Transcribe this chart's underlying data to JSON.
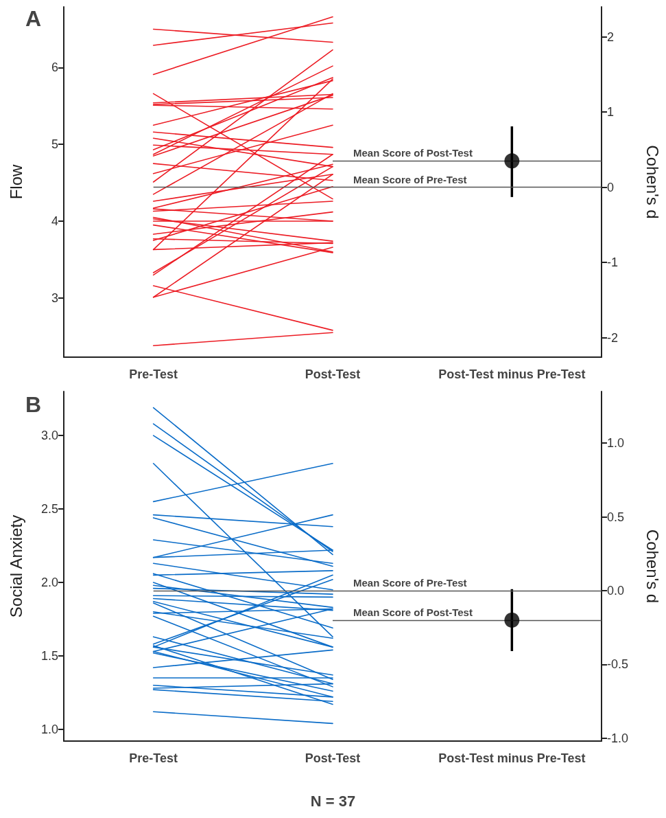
{
  "chart_data": [
    {
      "type": "line",
      "title": "A",
      "ylabel": "Flow",
      "y2label": "Cohen's d",
      "categories": [
        "Pre-Test",
        "Post-Test",
        "Post-Test minus Pre-Test"
      ],
      "ylim": [
        2.23,
        6.79
      ],
      "yticks": [
        3,
        4,
        5,
        6
      ],
      "y2lim": [
        -2.26,
        2.4
      ],
      "y2ticks": [
        -2,
        -1,
        0,
        1,
        2
      ],
      "ref_lines": [
        {
          "axis": "y2",
          "value": 0,
          "label": "Mean Score of Pre-Test",
          "color": "#555555"
        },
        {
          "axis": "y2",
          "value": 0.35,
          "label": "Mean Score of Post-Test",
          "color": "#555555"
        }
      ],
      "series": [
        {
          "color": "#ec1c24",
          "x": [
            "Pre-Test",
            "Post-Test"
          ],
          "values": [
            6.5,
            6.33
          ]
        },
        {
          "color": "#ec1c24",
          "x": [
            "Pre-Test",
            "Post-Test"
          ],
          "values": [
            6.29,
            6.58
          ]
        },
        {
          "color": "#ec1c24",
          "x": [
            "Pre-Test",
            "Post-Test"
          ],
          "values": [
            5.91,
            6.66
          ]
        },
        {
          "color": "#ec1c24",
          "x": [
            "Pre-Test",
            "Post-Test"
          ],
          "values": [
            5.66,
            4.29
          ]
        },
        {
          "color": "#ec1c24",
          "x": [
            "Pre-Test",
            "Post-Test"
          ],
          "values": [
            5.54,
            5.65
          ]
        },
        {
          "color": "#ec1c24",
          "x": [
            "Pre-Test",
            "Post-Test"
          ],
          "values": [
            5.52,
            5.61
          ]
        },
        {
          "color": "#ec1c24",
          "x": [
            "Pre-Test",
            "Post-Test"
          ],
          "values": [
            5.51,
            5.46
          ]
        },
        {
          "color": "#ec1c24",
          "x": [
            "Pre-Test",
            "Post-Test"
          ],
          "values": [
            5.25,
            5.83
          ]
        },
        {
          "color": "#ec1c24",
          "x": [
            "Pre-Test",
            "Post-Test"
          ],
          "values": [
            5.16,
            4.96
          ]
        },
        {
          "color": "#ec1c24",
          "x": [
            "Pre-Test",
            "Post-Test"
          ],
          "values": [
            5.08,
            4.71
          ]
        },
        {
          "color": "#ec1c24",
          "x": [
            "Pre-Test",
            "Post-Test"
          ],
          "values": [
            4.99,
            4.87
          ]
        },
        {
          "color": "#ec1c24",
          "x": [
            "Pre-Test",
            "Post-Test"
          ],
          "values": [
            4.93,
            5.87
          ]
        },
        {
          "color": "#ec1c24",
          "x": [
            "Pre-Test",
            "Post-Test"
          ],
          "values": [
            4.87,
            6.02
          ]
        },
        {
          "color": "#ec1c24",
          "x": [
            "Pre-Test",
            "Post-Test"
          ],
          "values": [
            4.85,
            5.64
          ]
        },
        {
          "color": "#ec1c24",
          "x": [
            "Pre-Test",
            "Post-Test"
          ],
          "values": [
            4.75,
            4.53
          ]
        },
        {
          "color": "#ec1c24",
          "x": [
            "Pre-Test",
            "Post-Test"
          ],
          "values": [
            4.62,
            5.25
          ]
        },
        {
          "color": "#ec1c24",
          "x": [
            "Pre-Test",
            "Post-Test"
          ],
          "values": [
            4.51,
            6.23
          ]
        },
        {
          "color": "#ec1c24",
          "x": [
            "Pre-Test",
            "Post-Test"
          ],
          "values": [
            4.35,
            5.66
          ]
        },
        {
          "color": "#ec1c24",
          "x": [
            "Pre-Test",
            "Post-Test"
          ],
          "values": [
            4.26,
            4.61
          ]
        },
        {
          "color": "#ec1c24",
          "x": [
            "Pre-Test",
            "Post-Test"
          ],
          "values": [
            4.17,
            4.74
          ]
        },
        {
          "color": "#ec1c24",
          "x": [
            "Pre-Test",
            "Post-Test"
          ],
          "values": [
            4.16,
            4.0
          ]
        },
        {
          "color": "#ec1c24",
          "x": [
            "Pre-Test",
            "Post-Test"
          ],
          "values": [
            4.13,
            4.26
          ]
        },
        {
          "color": "#ec1c24",
          "x": [
            "Pre-Test",
            "Post-Test"
          ],
          "values": [
            4.05,
            3.6
          ]
        },
        {
          "color": "#ec1c24",
          "x": [
            "Pre-Test",
            "Post-Test"
          ],
          "values": [
            4.03,
            3.74
          ]
        },
        {
          "color": "#ec1c24",
          "x": [
            "Pre-Test",
            "Post-Test"
          ],
          "values": [
            4.0,
            4.0
          ]
        },
        {
          "color": "#ec1c24",
          "x": [
            "Pre-Test",
            "Post-Test"
          ],
          "values": [
            3.95,
            3.59
          ]
        },
        {
          "color": "#ec1c24",
          "x": [
            "Pre-Test",
            "Post-Test"
          ],
          "values": [
            3.83,
            4.12
          ]
        },
        {
          "color": "#ec1c24",
          "x": [
            "Pre-Test",
            "Post-Test"
          ],
          "values": [
            3.75,
            4.45
          ]
        },
        {
          "color": "#ec1c24",
          "x": [
            "Pre-Test",
            "Post-Test"
          ],
          "values": [
            3.63,
            5.85
          ]
        },
        {
          "color": "#ec1c24",
          "x": [
            "Pre-Test",
            "Post-Test"
          ],
          "values": [
            3.63,
            3.72
          ]
        },
        {
          "color": "#ec1c24",
          "x": [
            "Pre-Test",
            "Post-Test"
          ],
          "values": [
            3.33,
            4.71
          ]
        },
        {
          "color": "#ec1c24",
          "x": [
            "Pre-Test",
            "Post-Test"
          ],
          "values": [
            3.3,
            4.87
          ]
        },
        {
          "color": "#ec1c24",
          "x": [
            "Pre-Test",
            "Post-Test"
          ],
          "values": [
            3.16,
            2.58
          ]
        },
        {
          "color": "#ec1c24",
          "x": [
            "Pre-Test",
            "Post-Test"
          ],
          "values": [
            3.01,
            4.61
          ]
        },
        {
          "color": "#ec1c24",
          "x": [
            "Pre-Test",
            "Post-Test"
          ],
          "values": [
            3.01,
            3.66
          ]
        },
        {
          "color": "#ec1c24",
          "x": [
            "Pre-Test",
            "Post-Test"
          ],
          "values": [
            2.38,
            2.55
          ]
        },
        {
          "color": "#ec1c24",
          "x": [
            "Pre-Test",
            "Post-Test"
          ],
          "values": [
            3.77,
            3.71
          ]
        },
        {
          "type": "scatter",
          "axis": "y2",
          "marker": "circle",
          "color": "#000000",
          "x": [
            "Post-Test minus Pre-Test"
          ],
          "values": [
            0.35
          ],
          "errors": [
            [
              -0.13,
              0.81
            ]
          ]
        }
      ]
    },
    {
      "type": "line",
      "title": "B",
      "ylabel": "Social Anxiety",
      "y2label": "Cohen's d",
      "categories": [
        "Pre-Test",
        "Post-Test",
        "Post-Test minus Pre-Test"
      ],
      "ylim": [
        0.92,
        3.3
      ],
      "yticks": [
        {
          "value": 1,
          "label": "1.0"
        },
        {
          "value": 1.5,
          "label": "1.5"
        },
        {
          "value": 2,
          "label": "2.0"
        },
        {
          "value": 2.5,
          "label": "2.5"
        },
        {
          "value": 3,
          "label": "3.0"
        }
      ],
      "y2lim": [
        -1.02,
        1.35
      ],
      "y2ticks": [
        {
          "value": -1,
          "label": "-1.0"
        },
        {
          "value": -0.5,
          "label": "-0.5"
        },
        {
          "value": 0,
          "label": "0.0"
        },
        {
          "value": 0.5,
          "label": "0.5"
        },
        {
          "value": 1,
          "label": "1.0"
        }
      ],
      "ref_lines": [
        {
          "axis": "y2",
          "value": 0,
          "label": "Mean Score of Pre-Test",
          "color": "#555555"
        },
        {
          "axis": "y2",
          "value": -0.2,
          "label": "Mean Score of Post-Test",
          "color": "#555555"
        }
      ],
      "annotations": [
        "N = 37"
      ],
      "series": [
        {
          "color": "#0a6cc8",
          "x": [
            "Pre-Test",
            "Post-Test"
          ],
          "values": [
            3.19,
            2.19
          ]
        },
        {
          "color": "#0a6cc8",
          "x": [
            "Pre-Test",
            "Post-Test"
          ],
          "values": [
            3.08,
            2.21
          ]
        },
        {
          "color": "#0a6cc8",
          "x": [
            "Pre-Test",
            "Post-Test"
          ],
          "values": [
            3.0,
            2.22
          ]
        },
        {
          "color": "#0a6cc8",
          "x": [
            "Pre-Test",
            "Post-Test"
          ],
          "values": [
            2.81,
            1.63
          ]
        },
        {
          "color": "#0a6cc8",
          "x": [
            "Pre-Test",
            "Post-Test"
          ],
          "values": [
            2.55,
            2.81
          ]
        },
        {
          "color": "#0a6cc8",
          "x": [
            "Pre-Test",
            "Post-Test"
          ],
          "values": [
            2.46,
            2.38
          ]
        },
        {
          "color": "#0a6cc8",
          "x": [
            "Pre-Test",
            "Post-Test"
          ],
          "values": [
            2.44,
            2.11
          ]
        },
        {
          "color": "#0a6cc8",
          "x": [
            "Pre-Test",
            "Post-Test"
          ],
          "values": [
            2.29,
            2.13
          ]
        },
        {
          "color": "#0a6cc8",
          "x": [
            "Pre-Test",
            "Post-Test"
          ],
          "values": [
            2.17,
            2.46
          ]
        },
        {
          "color": "#0a6cc8",
          "x": [
            "Pre-Test",
            "Post-Test"
          ],
          "values": [
            2.17,
            2.22
          ]
        },
        {
          "color": "#0a6cc8",
          "x": [
            "Pre-Test",
            "Post-Test"
          ],
          "values": [
            2.13,
            1.95
          ]
        },
        {
          "color": "#0a6cc8",
          "x": [
            "Pre-Test",
            "Post-Test"
          ],
          "values": [
            2.06,
            1.69
          ]
        },
        {
          "color": "#0a6cc8",
          "x": [
            "Pre-Test",
            "Post-Test"
          ],
          "values": [
            2.05,
            2.08
          ]
        },
        {
          "color": "#0a6cc8",
          "x": [
            "Pre-Test",
            "Post-Test"
          ],
          "values": [
            2.0,
            1.56
          ]
        },
        {
          "color": "#0a6cc8",
          "x": [
            "Pre-Test",
            "Post-Test"
          ],
          "values": [
            1.98,
            1.83
          ]
        },
        {
          "color": "#0a6cc8",
          "x": [
            "Pre-Test",
            "Post-Test"
          ],
          "values": [
            1.96,
            1.92
          ]
        },
        {
          "color": "#0a6cc8",
          "x": [
            "Pre-Test",
            "Post-Test"
          ],
          "values": [
            1.91,
            1.9
          ]
        },
        {
          "color": "#0a6cc8",
          "x": [
            "Pre-Test",
            "Post-Test"
          ],
          "values": [
            1.89,
            1.81
          ]
        },
        {
          "color": "#0a6cc8",
          "x": [
            "Pre-Test",
            "Post-Test"
          ],
          "values": [
            1.87,
            1.56
          ]
        },
        {
          "color": "#0a6cc8",
          "x": [
            "Pre-Test",
            "Post-Test"
          ],
          "values": [
            1.86,
            1.34
          ]
        },
        {
          "color": "#0a6cc8",
          "x": [
            "Pre-Test",
            "Post-Test"
          ],
          "values": [
            1.79,
            1.82
          ]
        },
        {
          "color": "#0a6cc8",
          "x": [
            "Pre-Test",
            "Post-Test"
          ],
          "values": [
            1.77,
            1.29
          ]
        },
        {
          "color": "#0a6cc8",
          "x": [
            "Pre-Test",
            "Post-Test"
          ],
          "values": [
            1.63,
            1.31
          ]
        },
        {
          "color": "#0a6cc8",
          "x": [
            "Pre-Test",
            "Post-Test"
          ],
          "values": [
            1.58,
            2.02
          ]
        },
        {
          "color": "#0a6cc8",
          "x": [
            "Pre-Test",
            "Post-Test"
          ],
          "values": [
            1.56,
            2.05
          ]
        },
        {
          "color": "#0a6cc8",
          "x": [
            "Pre-Test",
            "Post-Test"
          ],
          "values": [
            1.53,
            1.82
          ]
        },
        {
          "color": "#0a6cc8",
          "x": [
            "Pre-Test",
            "Post-Test"
          ],
          "values": [
            1.52,
            1.26
          ]
        },
        {
          "color": "#0a6cc8",
          "x": [
            "Pre-Test",
            "Post-Test"
          ],
          "values": [
            1.53,
            1.22
          ]
        },
        {
          "color": "#0a6cc8",
          "x": [
            "Pre-Test",
            "Post-Test"
          ],
          "values": [
            1.42,
            1.54
          ]
        },
        {
          "color": "#0a6cc8",
          "x": [
            "Pre-Test",
            "Post-Test"
          ],
          "values": [
            1.35,
            1.35
          ]
        },
        {
          "color": "#0a6cc8",
          "x": [
            "Pre-Test",
            "Post-Test"
          ],
          "values": [
            1.28,
            1.31
          ]
        },
        {
          "color": "#0a6cc8",
          "x": [
            "Pre-Test",
            "Post-Test"
          ],
          "values": [
            1.3,
            1.22
          ]
        },
        {
          "color": "#0a6cc8",
          "x": [
            "Pre-Test",
            "Post-Test"
          ],
          "values": [
            1.27,
            1.19
          ]
        },
        {
          "color": "#0a6cc8",
          "x": [
            "Pre-Test",
            "Post-Test"
          ],
          "values": [
            1.57,
            1.17
          ]
        },
        {
          "color": "#0a6cc8",
          "x": [
            "Pre-Test",
            "Post-Test"
          ],
          "values": [
            1.8,
            1.62
          ]
        },
        {
          "color": "#0a6cc8",
          "x": [
            "Pre-Test",
            "Post-Test"
          ],
          "values": [
            1.56,
            1.37
          ]
        },
        {
          "color": "#0a6cc8",
          "x": [
            "Pre-Test",
            "Post-Test"
          ],
          "values": [
            1.12,
            1.04
          ]
        },
        {
          "type": "scatter",
          "axis": "y2",
          "marker": "circle",
          "color": "#000000",
          "x": [
            "Post-Test minus Pre-Test"
          ],
          "values": [
            -0.2
          ],
          "errors": [
            [
              -0.41,
              0.01
            ]
          ]
        }
      ]
    }
  ]
}
